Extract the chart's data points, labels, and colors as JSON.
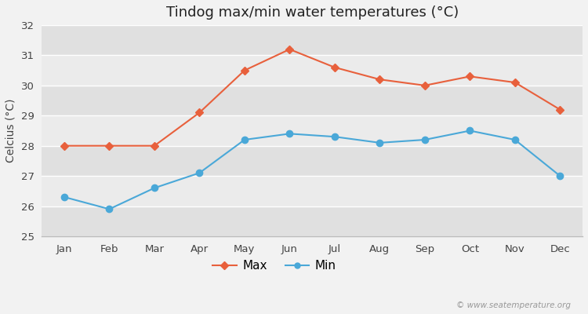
{
  "title": "Tindog max/min water temperatures (°C)",
  "ylabel": "Celcius (°C)",
  "months": [
    "Jan",
    "Feb",
    "Mar",
    "Apr",
    "May",
    "Jun",
    "Jul",
    "Aug",
    "Sep",
    "Oct",
    "Nov",
    "Dec"
  ],
  "max_temps": [
    28.0,
    28.0,
    28.0,
    29.1,
    30.5,
    31.2,
    30.6,
    30.2,
    30.0,
    30.3,
    30.1,
    29.2
  ],
  "min_temps": [
    26.3,
    25.9,
    26.6,
    27.1,
    28.2,
    28.4,
    28.3,
    28.1,
    28.2,
    28.5,
    28.2,
    27.0
  ],
  "max_color": "#e8603c",
  "min_color": "#4aa8d8",
  "bg_color": "#f2f2f2",
  "band_light": "#ebebeb",
  "band_dark": "#e0e0e0",
  "ylim": [
    25,
    32
  ],
  "yticks": [
    25,
    26,
    27,
    28,
    29,
    30,
    31,
    32
  ],
  "watermark": "© www.seatemperature.org",
  "title_fontsize": 13,
  "label_fontsize": 10,
  "tick_fontsize": 9.5
}
